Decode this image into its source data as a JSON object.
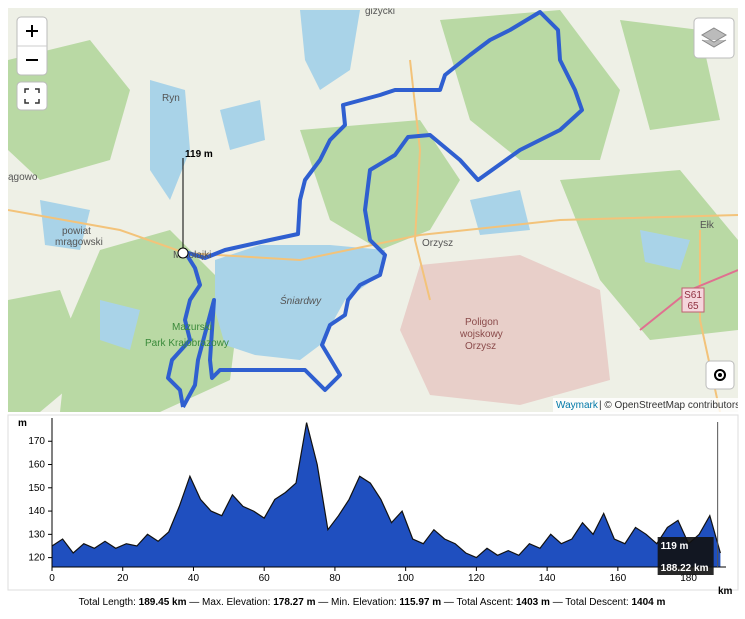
{
  "map": {
    "labels": {
      "gizycki": "giżycki",
      "ryn": "Ryn",
      "wagowo": "ągowo",
      "powiat": "powiat",
      "mragowski": "mrągowski",
      "mikolajki": "Mikołajki",
      "sniardwy": "Śniardwy",
      "park1": "Mazurski",
      "park2": "Park Krajobrazowy",
      "orzysz": "Orzysz",
      "poligon1": "Poligon",
      "poligon2": "wojskowy",
      "poligon3": "Orzysz",
      "elk": "Ełk",
      "road1": "S61",
      "road2": "65"
    },
    "attribution_link": "Waymark",
    "attribution": "| © OpenStreetMap contributors"
  },
  "hover": {
    "elevation": "119 m",
    "distance": "188.22 km",
    "distance_value": 188.22
  },
  "chart_data": {
    "type": "area",
    "color": "#1f4fbf",
    "y_label": "m",
    "x_label": "km",
    "x": [
      0,
      3,
      6,
      9,
      12,
      15,
      18,
      21,
      24,
      27,
      30,
      33,
      36,
      39,
      42,
      45,
      48,
      51,
      54,
      57,
      60,
      63,
      66,
      69,
      72,
      75,
      78,
      81,
      84,
      87,
      90,
      93,
      96,
      99,
      102,
      105,
      108,
      111,
      114,
      117,
      120,
      123,
      126,
      129,
      132,
      135,
      138,
      141,
      144,
      147,
      150,
      153,
      156,
      159,
      162,
      165,
      168,
      171,
      174,
      177,
      180,
      183,
      186,
      189
    ],
    "values": [
      125,
      128,
      122,
      126,
      124,
      127,
      124,
      126,
      125,
      130,
      127,
      131,
      142,
      155,
      145,
      140,
      138,
      147,
      142,
      140,
      137,
      145,
      148,
      152,
      178,
      160,
      132,
      138,
      145,
      155,
      152,
      145,
      135,
      140,
      128,
      126,
      132,
      128,
      126,
      122,
      120,
      124,
      121,
      123,
      121,
      126,
      124,
      130,
      126,
      128,
      135,
      130,
      139,
      128,
      126,
      133,
      130,
      126,
      133,
      136,
      126,
      130,
      138,
      122
    ],
    "xlim": [
      0,
      189.45
    ],
    "ylim": [
      115.97,
      178.27
    ],
    "xticks": [
      0,
      20,
      40,
      60,
      80,
      100,
      120,
      140,
      160,
      180
    ],
    "yticks": [
      120,
      130,
      140,
      150,
      160,
      170
    ]
  },
  "summary": {
    "length_label": "Total Length:",
    "length": "189.45 km",
    "max_label": "— Max. Elevation:",
    "max": "178.27 m",
    "min_label": "— Min. Elevation:",
    "min": "115.97 m",
    "ascent_label": "— Total Ascent:",
    "ascent": "1403 m",
    "descent_label": "— Total Descent:",
    "descent": "1404 m"
  }
}
